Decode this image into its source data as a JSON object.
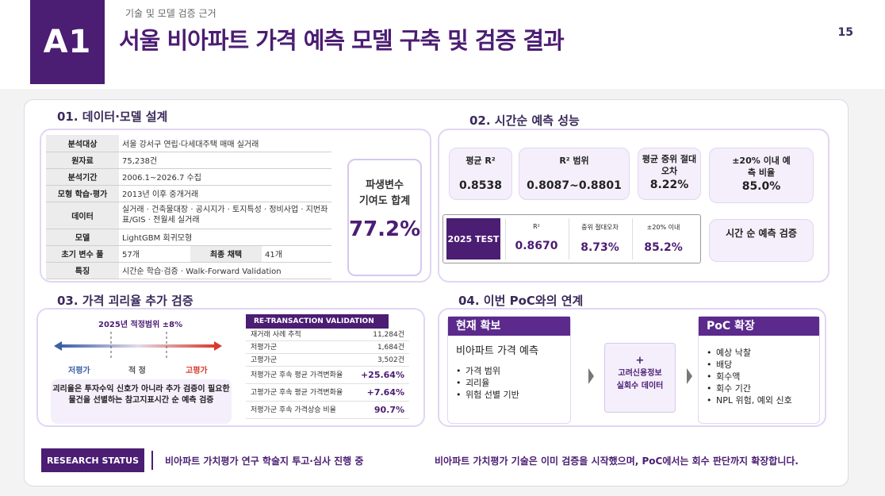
{
  "header": {
    "badge": "A1",
    "subtitle": "기술 및 모델 검증 근거",
    "title": "서울 비아파트 가격 예측 모델 구축 및 검증 결과",
    "page_number": "15"
  },
  "sec1": {
    "title": "01. 데이터·모델 설계",
    "rows": [
      {
        "k": "분석대상",
        "v": "서울 강서구 연립·다세대주택 매매 실거래"
      },
      {
        "k": "원자료",
        "v": "75,238건"
      },
      {
        "k": "분석기간",
        "v": "2006.1~2026.7 수집"
      },
      {
        "k": "모형 학습·평가",
        "v": "2013년 이후 중개거래"
      },
      {
        "k": "데이터",
        "v": "실거래 · 건축물대장 · 공시지가 · 토지특성 · 정비사업 · 지번좌표/GIS · 전월세 실거래"
      },
      {
        "k": "모델",
        "v": "LightGBM 회귀모형"
      },
      {
        "k": "초기 변수 풀",
        "v": "57개",
        "k2": "최종 채택",
        "v2": "41개"
      },
      {
        "k": "특징",
        "v": "시간순 학습·검증 · Walk-Forward Validation"
      }
    ],
    "derive_label_1": "파생변수",
    "derive_label_2": "기여도 합계",
    "derive_value": "77.2%"
  },
  "sec2": {
    "title": "02. 시간순 예측 성능",
    "metrics": [
      {
        "t": "평균 R²",
        "v": "0.8538"
      },
      {
        "t": "R² 범위",
        "v": "0.8087~0.8801"
      },
      {
        "t": "평균 중위 절대 오차",
        "v": "8.22%"
      },
      {
        "t": "±20% 이내 예측 비율",
        "v": "85.0%"
      }
    ],
    "test_label": "2025 TEST",
    "test_cols": [
      {
        "h": "R²",
        "v": "0.8670"
      },
      {
        "h": "중위 절대오차",
        "v": "8.73%"
      },
      {
        "h": "±20% 이내",
        "v": "85.2%"
      }
    ],
    "time_check": "시간 순 예측 검증"
  },
  "sec3": {
    "title": "03. 가격 괴리율 추가 검증",
    "range_title": "2025년 적정범위 ±8%",
    "labels": {
      "low": "저평가",
      "mid": "적 정",
      "high": "고평가"
    },
    "note": "괴리율은 투자수익 신호가 아니라 추가 검증이 필요한 물건을 선별하는 참고지표시간 순 예측 검증",
    "retx_title": "RE-TRANSACTION VALIDATION",
    "retx_rows": [
      {
        "k": "재거래 사례 추적",
        "v": "11,284건"
      },
      {
        "k": "저평가군",
        "v": "1,684건"
      },
      {
        "k": "고평가군",
        "v": "3,502건"
      },
      {
        "k": "저평가군 후속 평균 가격변화율",
        "v": "+25.64%"
      },
      {
        "k": "고평가군 후속 평균 가격변화율",
        "v": "+7.64%"
      },
      {
        "k": "저평가군 후속 가격상승 비율",
        "v": "90.7%"
      }
    ]
  },
  "sec4": {
    "title": "04. 이번 PoC와의 연계",
    "current_title": "현재 확보",
    "current_main": "비아파트 가격 예측",
    "current_items": [
      "가격 범위",
      "괴리율",
      "위험 선별 기반"
    ],
    "plus_sign": "+",
    "plus_text_1": "고려신용정보",
    "plus_text_2": "실회수 데이터",
    "poc_title": "PoC 확장",
    "poc_items": [
      "예상 낙찰",
      "배당",
      "회수액",
      "회수 기간",
      "NPL 위험, 예외 신호"
    ]
  },
  "footer": {
    "status_label": "RESEARCH STATUS",
    "status_text": "비아파트 가치평가 연구 학술지 투고·심사 진행 중",
    "summary": "비아파트 가치평가 기술은 이미 검증을 시작했으며, PoC에서는 회수 판단까지 확장합니다."
  },
  "colors": {
    "brand": "#4b1d73",
    "light": "#f4effb",
    "border": "#e2d6f2",
    "low_arrow": "#3b5fa8",
    "high_arrow": "#d93a2b"
  }
}
